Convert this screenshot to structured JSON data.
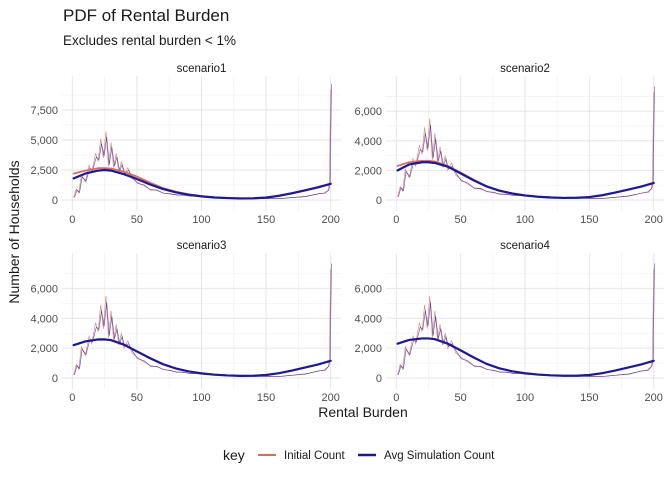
{
  "title": "PDF of Rental Burden",
  "subtitle": "Excludes rental burden < 1%",
  "xlabel": "Rental Burden",
  "ylabel": "Number of Households",
  "legend": {
    "title": "key",
    "items": [
      {
        "label": "Initial Count",
        "color": "#e06b5a"
      },
      {
        "label": "Avg Simulation Count",
        "color": "#1a1a99"
      }
    ]
  },
  "chart_data": {
    "type": "line",
    "title": "PDF of Rental Burden",
    "subtitle": "Excludes rental burden < 1%",
    "xlabel": "Rental Burden",
    "ylabel": "Number of Households",
    "grid": true,
    "legend_position": "bottom",
    "x_ticks": [
      0,
      50,
      100,
      150,
      200
    ],
    "panels": [
      {
        "name": "scenario1",
        "ylim": [
          0,
          9500
        ],
        "y_ticks": [
          0,
          2500,
          5000,
          7500
        ],
        "y_tick_labels": [
          "0",
          "2,500",
          "5,000",
          "7,500"
        ],
        "series": [
          {
            "name": "Initial Count",
            "smooth_x": [
              1,
              10,
              20,
              25,
              30,
              40,
              50,
              60,
              70,
              80,
              90,
              100,
              110,
              120,
              130,
              140,
              150,
              160,
              170,
              180,
              190,
              200
            ],
            "smooth_y": [
              2200,
              2450,
              2650,
              2650,
              2620,
              2350,
              1950,
              1450,
              1000,
              700,
              470,
              330,
              230,
              180,
              140,
              150,
              220,
              370,
              580,
              820,
              1080,
              1350
            ]
          },
          {
            "name": "Avg Simulation Count",
            "smooth_x": [
              1,
              10,
              20,
              25,
              30,
              40,
              50,
              60,
              70,
              80,
              90,
              100,
              110,
              120,
              130,
              140,
              150,
              160,
              170,
              180,
              190,
              200
            ],
            "smooth_y": [
              1800,
              2200,
              2450,
              2500,
              2450,
              2150,
              1750,
              1300,
              920,
              640,
              440,
              300,
              210,
              160,
              130,
              140,
              200,
              350,
              560,
              800,
              1050,
              1350
            ]
          }
        ],
        "raw_x": [
          1,
          3,
          5,
          7,
          10,
          13,
          15,
          18,
          20,
          22,
          24,
          26,
          28,
          30,
          32,
          34,
          36,
          38,
          40,
          43,
          46,
          50,
          55,
          60,
          65,
          70,
          75,
          80,
          85,
          90,
          95,
          100,
          110,
          120,
          130,
          140,
          150,
          160,
          170,
          180,
          190,
          195,
          198,
          199,
          200
        ],
        "raw_y": [
          200,
          900,
          600,
          2100,
          1500,
          2900,
          2300,
          3900,
          3200,
          5100,
          3500,
          5700,
          2800,
          4800,
          2700,
          3900,
          2300,
          3200,
          2100,
          2700,
          1800,
          1500,
          1200,
          900,
          800,
          600,
          500,
          450,
          400,
          350,
          300,
          280,
          220,
          180,
          150,
          130,
          120,
          120,
          200,
          300,
          500,
          600,
          800,
          1500,
          9200
        ]
      },
      {
        "name": "scenario2",
        "ylim": [
          0,
          7700
        ],
        "y_ticks": [
          0,
          2000,
          4000,
          6000
        ],
        "y_tick_labels": [
          "0",
          "2,000",
          "4,000",
          "6,000"
        ],
        "series": [
          {
            "name": "Initial Count",
            "smooth_x": [
              1,
              10,
              20,
              25,
              30,
              40,
              50,
              60,
              70,
              80,
              90,
              100,
              110,
              120,
              130,
              140,
              150,
              160,
              170,
              180,
              190,
              200
            ],
            "smooth_y": [
              2300,
              2550,
              2650,
              2650,
              2600,
              2300,
              1850,
              1380,
              950,
              650,
              450,
              320,
              230,
              180,
              150,
              150,
              200,
              320,
              500,
              700,
              900,
              1150
            ]
          },
          {
            "name": "Avg Simulation Count",
            "smooth_x": [
              1,
              10,
              20,
              25,
              30,
              40,
              50,
              60,
              70,
              80,
              90,
              100,
              110,
              120,
              130,
              140,
              150,
              160,
              170,
              180,
              190,
              200
            ],
            "smooth_y": [
              2000,
              2400,
              2550,
              2550,
              2500,
              2250,
              1800,
              1330,
              920,
              630,
              440,
              310,
              220,
              170,
              140,
              150,
              200,
              320,
              500,
              700,
              900,
              1150
            ]
          }
        ],
        "raw_x": [
          1,
          3,
          5,
          7,
          10,
          13,
          15,
          18,
          20,
          22,
          24,
          26,
          28,
          30,
          32,
          34,
          36,
          38,
          40,
          43,
          46,
          50,
          55,
          60,
          65,
          70,
          75,
          80,
          85,
          90,
          95,
          100,
          110,
          120,
          130,
          140,
          150,
          160,
          170,
          180,
          190,
          195,
          198,
          199,
          200
        ],
        "raw_y": [
          200,
          900,
          600,
          2100,
          1500,
          2800,
          2300,
          3700,
          3100,
          4900,
          3300,
          5500,
          2700,
          4500,
          2500,
          3600,
          2200,
          3000,
          2000,
          2500,
          1700,
          1400,
          1100,
          850,
          750,
          600,
          500,
          420,
          380,
          330,
          300,
          270,
          210,
          170,
          140,
          120,
          110,
          110,
          180,
          280,
          450,
          550,
          750,
          1300,
          7300
        ]
      },
      {
        "name": "scenario3",
        "ylim": [
          0,
          7700
        ],
        "y_ticks": [
          0,
          2000,
          4000,
          6000
        ],
        "y_tick_labels": [
          "0",
          "2,000",
          "4,000",
          "6,000"
        ],
        "series": [
          {
            "name": "Initial Count",
            "smooth_x": [
              1,
              10,
              20,
              25,
              30,
              40,
              50,
              60,
              70,
              80,
              90,
              100,
              110,
              120,
              130,
              140,
              150,
              160,
              170,
              180,
              190,
              200
            ],
            "smooth_y": [
              2200,
              2450,
              2600,
              2600,
              2550,
              2250,
              1800,
              1350,
              950,
              650,
              450,
              320,
              230,
              180,
              150,
              150,
              200,
              320,
              500,
              700,
              900,
              1150
            ]
          },
          {
            "name": "Avg Simulation Count",
            "smooth_x": [
              1,
              10,
              20,
              25,
              30,
              40,
              50,
              60,
              70,
              80,
              90,
              100,
              110,
              120,
              130,
              140,
              150,
              160,
              170,
              180,
              190,
              200
            ],
            "smooth_y": [
              2200,
              2450,
              2580,
              2580,
              2530,
              2230,
              1780,
              1330,
              930,
              640,
              440,
              310,
              220,
              170,
              140,
              150,
              200,
              320,
              500,
              700,
              900,
              1150
            ]
          }
        ],
        "raw_x": [
          1,
          3,
          5,
          7,
          10,
          13,
          15,
          18,
          20,
          22,
          24,
          26,
          28,
          30,
          32,
          34,
          36,
          38,
          40,
          43,
          46,
          50,
          55,
          60,
          65,
          70,
          75,
          80,
          85,
          90,
          95,
          100,
          110,
          120,
          130,
          140,
          150,
          160,
          170,
          180,
          190,
          195,
          198,
          199,
          200
        ],
        "raw_y": [
          200,
          900,
          600,
          2100,
          1500,
          2800,
          2300,
          3700,
          3100,
          4900,
          3300,
          5500,
          2700,
          4500,
          2500,
          3600,
          2200,
          3000,
          2000,
          2500,
          1700,
          1400,
          1100,
          850,
          750,
          600,
          500,
          420,
          380,
          330,
          300,
          270,
          210,
          170,
          140,
          120,
          110,
          110,
          180,
          280,
          450,
          550,
          750,
          1300,
          7300
        ]
      },
      {
        "name": "scenario4",
        "ylim": [
          0,
          7700
        ],
        "y_ticks": [
          0,
          2000,
          4000,
          6000
        ],
        "y_tick_labels": [
          "0",
          "2,000",
          "4,000",
          "6,000"
        ],
        "series": [
          {
            "name": "Initial Count",
            "smooth_x": [
              1,
              10,
              20,
              25,
              30,
              40,
              50,
              60,
              70,
              80,
              90,
              100,
              110,
              120,
              130,
              140,
              150,
              160,
              170,
              180,
              190,
              200
            ],
            "smooth_y": [
              2300,
              2550,
              2650,
              2650,
              2600,
              2300,
              1850,
              1380,
              950,
              650,
              450,
              320,
              230,
              180,
              150,
              150,
              200,
              320,
              500,
              700,
              900,
              1150
            ]
          },
          {
            "name": "Avg Simulation Count",
            "smooth_x": [
              1,
              10,
              20,
              25,
              30,
              40,
              50,
              60,
              70,
              80,
              90,
              100,
              110,
              120,
              130,
              140,
              150,
              160,
              170,
              180,
              190,
              200
            ],
            "smooth_y": [
              2300,
              2550,
              2650,
              2650,
              2600,
              2300,
              1850,
              1380,
              950,
              650,
              450,
              320,
              230,
              180,
              150,
              150,
              200,
              320,
              500,
              700,
              900,
              1150
            ]
          }
        ],
        "raw_x": [
          1,
          3,
          5,
          7,
          10,
          13,
          15,
          18,
          20,
          22,
          24,
          26,
          28,
          30,
          32,
          34,
          36,
          38,
          40,
          43,
          46,
          50,
          55,
          60,
          65,
          70,
          75,
          80,
          85,
          90,
          95,
          100,
          110,
          120,
          130,
          140,
          150,
          160,
          170,
          180,
          190,
          195,
          198,
          199,
          200
        ],
        "raw_y": [
          200,
          900,
          600,
          2100,
          1500,
          2800,
          2300,
          3700,
          3100,
          4900,
          3300,
          5500,
          2700,
          4500,
          2500,
          3600,
          2200,
          3000,
          2000,
          2500,
          1700,
          1400,
          1100,
          850,
          750,
          600,
          500,
          420,
          380,
          330,
          300,
          270,
          210,
          170,
          140,
          120,
          110,
          110,
          180,
          280,
          450,
          550,
          750,
          1300,
          7300
        ]
      }
    ]
  }
}
